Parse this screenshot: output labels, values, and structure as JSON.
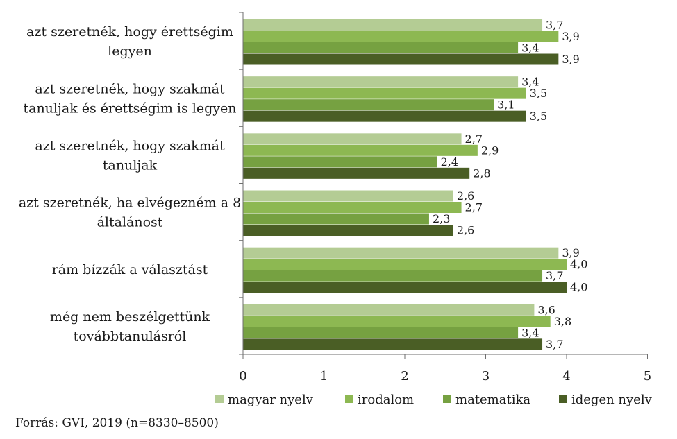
{
  "source_note": "Forrás: GVI, 2019 (n=8330–8500)",
  "colors": {
    "magyar_nyelv": "#b4cc94",
    "irodalom": "#8db852",
    "matematika": "#76a141",
    "idegen_nyelv": "#4a5e25",
    "axis": "#6e6e6e"
  },
  "chart_data": {
    "type": "bar",
    "orientation": "horizontal",
    "title": "",
    "xlabel": "",
    "ylabel": "",
    "xlim": [
      0,
      5
    ],
    "xticks": [
      "0",
      "1",
      "2",
      "3",
      "4",
      "5"
    ],
    "grid": false,
    "legend_position": "bottom",
    "categories": [
      [
        "azt szeretnék, hogy érettségim",
        "legyen"
      ],
      [
        "azt szeretnék, hogy szakmát",
        "tanuljak és érettségim is legyen"
      ],
      [
        "azt szeretnék, hogy szakmát",
        "tanuljak"
      ],
      [
        "azt szeretnék, ha elvégezném a 8",
        "általánost"
      ],
      [
        "rám bízzák a választást"
      ],
      [
        "még nem beszélgettünk",
        "továbbtanulásról"
      ]
    ],
    "series": [
      {
        "name": "magyar nyelv",
        "color": "#b4cc94",
        "values": [
          3.7,
          3.4,
          2.7,
          2.6,
          3.9,
          3.6
        ],
        "labels": [
          "3,7",
          "3,4",
          "2,7",
          "2,6",
          "3,9",
          "3,6"
        ]
      },
      {
        "name": "irodalom",
        "color": "#8db852",
        "values": [
          3.9,
          3.5,
          2.9,
          2.7,
          4.0,
          3.8
        ],
        "labels": [
          "3,9",
          "3,5",
          "2,9",
          "2,7",
          "4,0",
          "3,8"
        ]
      },
      {
        "name": "matematika",
        "color": "#76a141",
        "values": [
          3.4,
          3.1,
          2.4,
          2.3,
          3.7,
          3.4
        ],
        "labels": [
          "3,4",
          "3,1",
          "2,4",
          "2,3",
          "3,7",
          "3,4"
        ]
      },
      {
        "name": "idegen nyelv",
        "color": "#4a5e25",
        "values": [
          3.9,
          3.5,
          2.8,
          2.6,
          4.0,
          3.7
        ],
        "labels": [
          "3,9",
          "3,5",
          "2,8",
          "2,6",
          "4,0",
          "3,7"
        ]
      }
    ]
  }
}
